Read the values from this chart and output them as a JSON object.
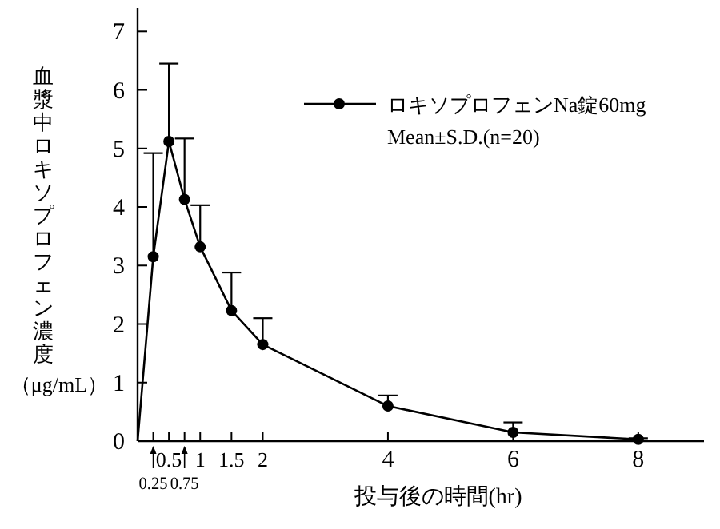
{
  "chart_data": {
    "type": "line",
    "xlabel": "投与後の時間(hr)",
    "ylabel": "血漿中ロキソプロフェン濃度（μg/mL）",
    "xlim": [
      0,
      9.05
    ],
    "ylim": [
      0,
      7.4
    ],
    "xticks": [
      {
        "value": 0.25,
        "label": null
      },
      0.5,
      {
        "value": 0.75,
        "label": null
      },
      1,
      1.5,
      2,
      4,
      6,
      8
    ],
    "yticks": [
      0,
      1,
      2,
      3,
      4,
      5,
      6,
      7
    ],
    "x": [
      0,
      0.25,
      0.5,
      0.75,
      1,
      1.5,
      2,
      4,
      6,
      8
    ],
    "series": [
      {
        "name": "ロキソプロフェンNa錠60mg",
        "color": "#000000",
        "values": [
          0,
          3.15,
          5.12,
          4.13,
          3.32,
          2.23,
          1.65,
          0.6,
          0.15,
          0.03
        ],
        "errors": [
          null,
          [
            3.15,
            4.92
          ],
          [
            5.12,
            6.45
          ],
          [
            4.13,
            5.17
          ],
          [
            3.32,
            4.03
          ],
          [
            2.23,
            2.88
          ],
          [
            1.65,
            2.1
          ],
          [
            0.6,
            0.78
          ],
          [
            0.15,
            0.32
          ],
          [
            0.03,
            0.05
          ]
        ]
      }
    ],
    "annotations": [
      "Mean±S.D.(n=20)",
      {
        "text": "0.25",
        "x": 0.25
      },
      {
        "text": "0.75",
        "x": 0.75
      }
    ],
    "legend": "top right",
    "marker": "circle"
  }
}
